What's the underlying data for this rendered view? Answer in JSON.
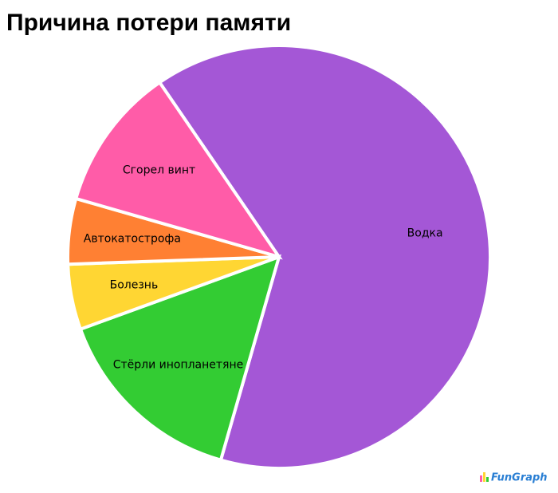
{
  "chart_data": {
    "type": "pie",
    "title": "Причина потери памяти",
    "categories": [
      "Водка",
      "Стёрли инопланетяне",
      "Болезнь",
      "Автокатострофа",
      "Сгорел винт"
    ],
    "values": [
      64,
      15,
      5,
      5,
      11
    ],
    "colors": [
      "#a457d6",
      "#33cc33",
      "#ffd633",
      "#ff8033",
      "#ff5ca8"
    ],
    "watermark": "FunGraph"
  }
}
